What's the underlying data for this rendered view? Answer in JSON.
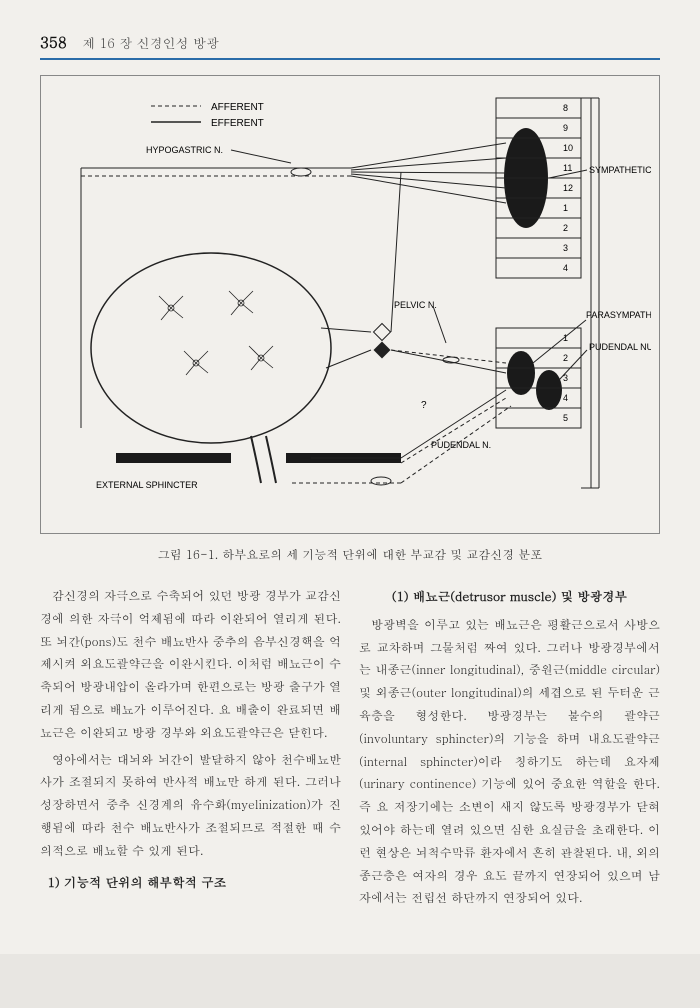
{
  "header": {
    "page_number": "358",
    "chapter": "제 16 장  신경인성 방광"
  },
  "figure": {
    "legend": {
      "afferent": "AFFERENT",
      "efferent": "EFFERENT"
    },
    "labels": {
      "hypogastric": "HYPOGASTRIC N.",
      "pelvic": "PELVIC N.",
      "pudendal": "PUDENDAL N.",
      "ext_sphincter": "EXTERNAL SPHINCTER",
      "sympathetic": "SYMPATHETIC NUCLEUS",
      "parasympathetic": "PARASYMPATHETIC NUCLEUS",
      "pudendal_nuc": "PUDENDAL NUCLEUS"
    },
    "spinal_segments_top": [
      "8",
      "9",
      "10",
      "11",
      "12",
      "1",
      "2",
      "3",
      "4"
    ],
    "spinal_segments_bot": [
      "1",
      "2",
      "3",
      "4",
      "5"
    ],
    "caption": "그림 16-1. 하부요로의 세 기능적 단위에 대한 부교감 및 교감신경 분포",
    "colors": {
      "stroke": "#222222",
      "fill_dark": "#1a1a1a",
      "bg": "#f2f0ec"
    }
  },
  "body": {
    "left": {
      "p1": "감신경의 자극으로 수축되어 있던 방광 경부가 교감신경에 의한 자극이 억제됨에 따라 이완되어 열리게 된다. 또 뇌간(pons)도 천수 배뇨반사 중추의 음부신경핵을 억제시켜 외요도괄약근을 이완시킨다. 이처럼 배뇨근이 수축되어 방광내압이 올라가며 한편으로는 방광 출구가 열리게 됨으로 배뇨가 이루어진다. 요 배출이 완료되면 배뇨근은 이완되고 방광 경부와 외요도괄약근은 닫힌다.",
      "p2": "영아에서는 대뇌와 뇌간이 발달하지 않아 천수배뇨반사가 조절되지 못하여 반사적 배뇨만 하게 된다. 그러나 성장하면서 중추 신경계의 유수화(myelinization)가 진행됨에 따라 천수 배뇨반사가 조절되므로 적절한 때 수의적으로 배뇨할 수 있게 된다.",
      "h1": "1) 기능적 단위의 해부학적 구조"
    },
    "right": {
      "h1": "(1) 배뇨근(detrusor muscle) 및 방광경부",
      "p1": "방광벽을 이루고 있는 배뇨근은 평활근으로서 사방으로 교차하며 그물처럼 짜여 있다. 그러나 방광경부에서는 내종근(inner longitudinal), 중원근(middle circular) 및 외종근(outer longitudinal)의 세겹으로 된 두터운 근육층을 형성한다. 방광경부는 불수의 괄약근(involuntary sphincter)의 기능을 하며 내요도괄약근(internal sphincter)이라 칭하기도 하는데 요자제(urinary continence) 기능에 있어 중요한 역할을 한다. 즉 요 저장기에는 소변이 새지 않도록 방광경부가 닫혀 있어야 하는데 열려 있으면 심한 요실금을 초래한다. 이런 현상은 뇌척수막류 환자에서 흔히 관찰된다. 내, 외의 종근층은 여자의 경우 요도 끝까지 연장되어 있으며 남자에서는 전립선 하단까지 연장되어 있다."
    }
  }
}
